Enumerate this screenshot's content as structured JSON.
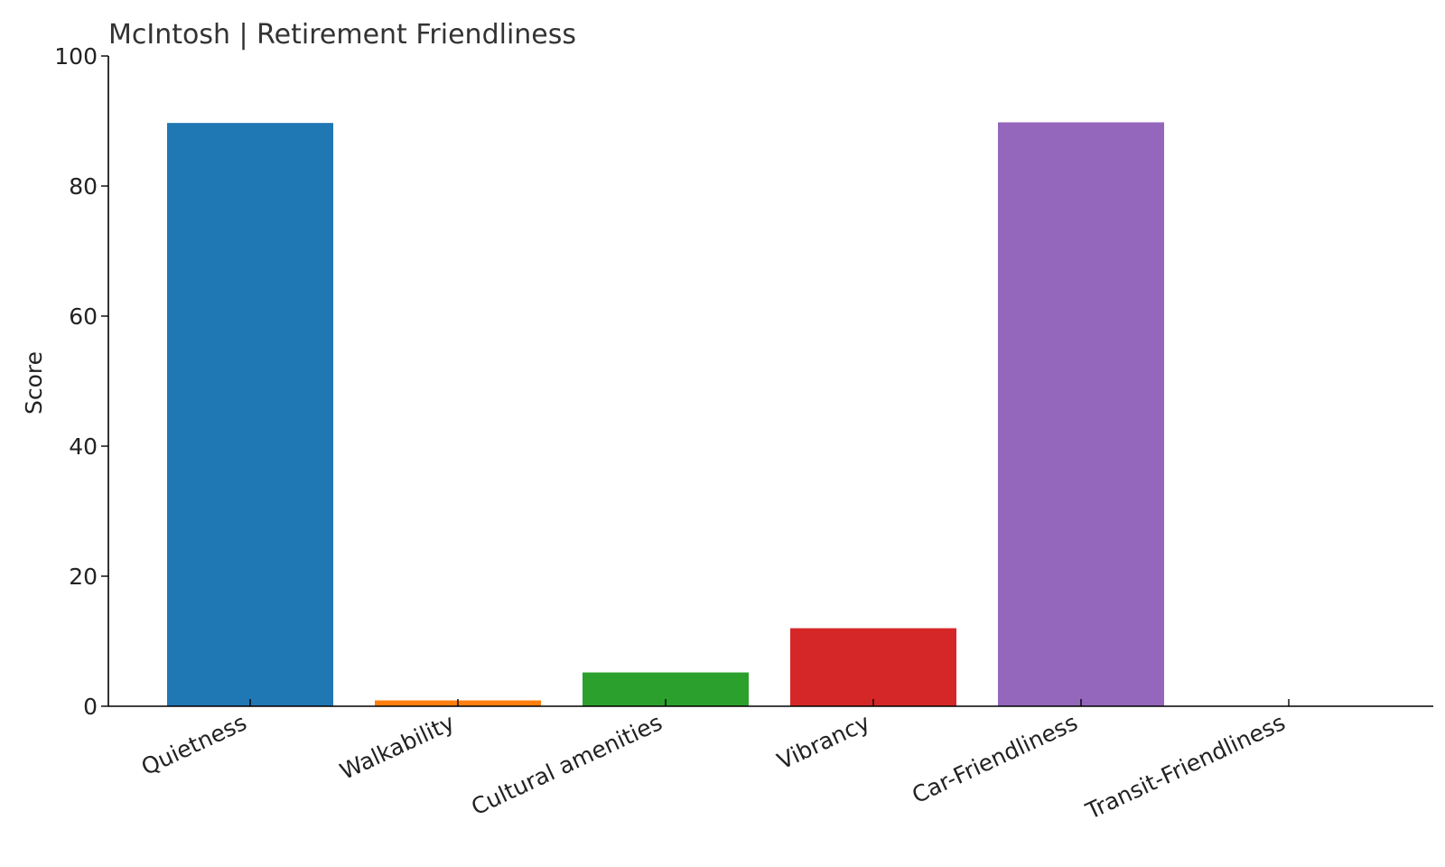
{
  "chart_data": {
    "type": "bar",
    "title": "McIntosh | Retirement Friendliness",
    "xlabel": "",
    "ylabel": "Score",
    "ylim": [
      0,
      100
    ],
    "yticks": [
      0,
      20,
      40,
      60,
      80,
      100
    ],
    "categories": [
      "Quietness",
      "Walkability",
      "Cultural amenities",
      "Vibrancy",
      "Car-Friendliness",
      "Transit-Friendliness"
    ],
    "values": [
      89.7,
      0.9,
      5.2,
      12.0,
      89.8,
      0.0
    ],
    "colors": [
      "#1f77b4",
      "#ff7f0e",
      "#2ca02c",
      "#d62728",
      "#9467bd",
      "#8c564b"
    ],
    "grid": false,
    "legend": "none"
  }
}
